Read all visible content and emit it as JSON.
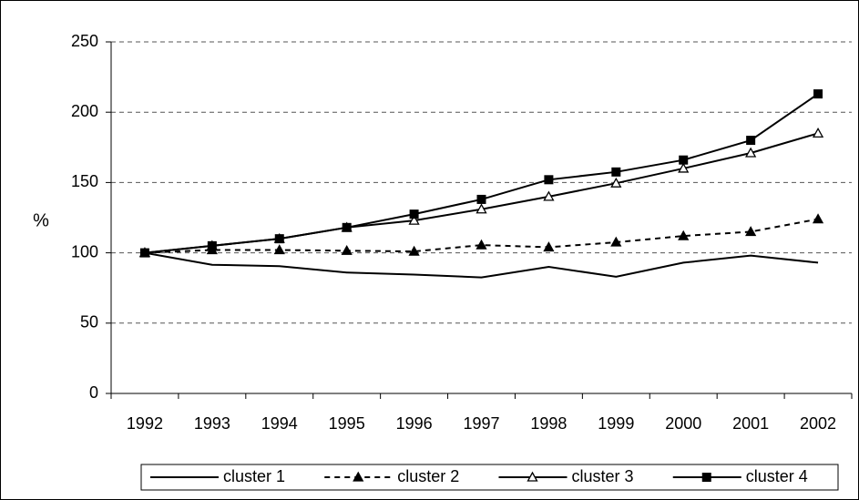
{
  "chart_data": {
    "type": "line",
    "y_label": "%",
    "categories": [
      "1992",
      "1993",
      "1994",
      "1995",
      "1996",
      "1997",
      "1998",
      "1999",
      "2000",
      "2001",
      "2002"
    ],
    "series": [
      {
        "name": "cluster 1",
        "color": "#000000",
        "line_style": "solid",
        "marker": "none",
        "values": [
          100,
          91.5,
          90.5,
          86,
          84.5,
          82.5,
          90,
          83,
          93,
          98,
          93
        ]
      },
      {
        "name": "cluster 2",
        "color": "#000000",
        "line_style": "dashed",
        "marker": "triangle-filled",
        "values": [
          100,
          102,
          102,
          101.5,
          101,
          105.5,
          104,
          107.5,
          112,
          115,
          124
        ]
      },
      {
        "name": "cluster 3",
        "color": "#000000",
        "line_style": "solid",
        "marker": "triangle-open",
        "values": [
          100,
          105,
          110,
          118,
          123,
          131,
          140,
          149.5,
          160,
          171,
          185
        ]
      },
      {
        "name": "cluster 4",
        "color": "#000000",
        "line_style": "solid",
        "marker": "square-filled",
        "values": [
          100,
          105,
          110,
          118,
          127.5,
          138,
          152,
          157.5,
          166,
          180,
          213
        ]
      }
    ],
    "ylim": [
      0,
      250
    ],
    "yticks": [
      0,
      50,
      100,
      150,
      200,
      250
    ],
    "grid": true,
    "legend": "bottom"
  }
}
